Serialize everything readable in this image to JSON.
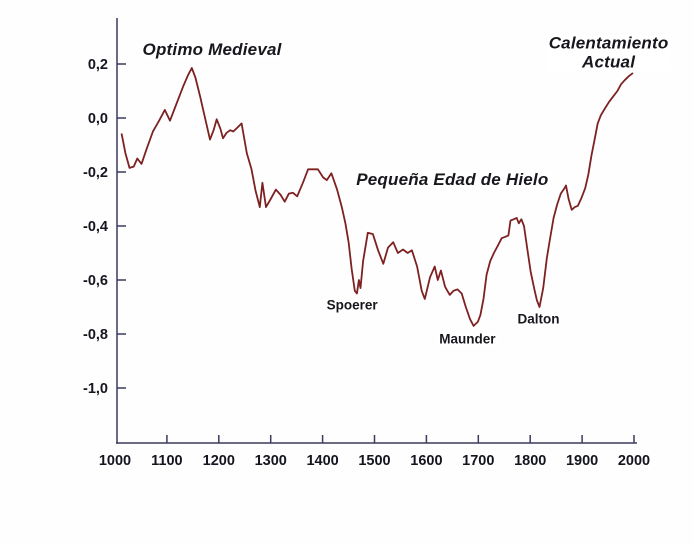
{
  "figure": {
    "background": "#fefefe",
    "line_color": "#7d2121",
    "axis_color": "#3a3a5e",
    "tick_label_color": "#15151f",
    "annotation_color": "#17171d"
  },
  "chart_data": {
    "type": "line",
    "title": "",
    "xlabel": "",
    "ylabel": "",
    "xlim": [
      1000,
      2000
    ],
    "ylim": [
      -1.1,
      0.3
    ],
    "grid": false,
    "legend": null,
    "x_ticks": [
      1000,
      1100,
      1200,
      1300,
      1400,
      1500,
      1600,
      1700,
      1800,
      1900,
      2000
    ],
    "x_tick_labels": [
      "1000",
      "1100",
      "1200",
      "1300",
      "1400",
      "1500",
      "1600",
      "1700",
      "1800",
      "1900",
      "2000"
    ],
    "y_ticks": [
      0.2,
      0.0,
      -0.2,
      -0.4,
      -0.6,
      -0.8,
      -1.0
    ],
    "y_tick_labels": [
      "0,2",
      "0,0",
      "-0,2",
      "-0,4",
      "-0,6",
      "-0,8",
      "-1,0"
    ],
    "series": [
      {
        "name": "anomalia-temperatura",
        "color": "#7d2121",
        "points": [
          [
            1013,
            -0.06
          ],
          [
            1020,
            -0.13
          ],
          [
            1028,
            -0.185
          ],
          [
            1036,
            -0.18
          ],
          [
            1043,
            -0.15
          ],
          [
            1051,
            -0.17
          ],
          [
            1060,
            -0.12
          ],
          [
            1073,
            -0.05
          ],
          [
            1085,
            -0.01
          ],
          [
            1096,
            0.03
          ],
          [
            1106,
            -0.01
          ],
          [
            1118,
            0.05
          ],
          [
            1132,
            0.12
          ],
          [
            1141,
            0.16
          ],
          [
            1148,
            0.185
          ],
          [
            1155,
            0.15
          ],
          [
            1164,
            0.08
          ],
          [
            1170,
            0.03
          ],
          [
            1177,
            -0.03
          ],
          [
            1183,
            -0.08
          ],
          [
            1190,
            -0.045
          ],
          [
            1196,
            -0.005
          ],
          [
            1203,
            -0.04
          ],
          [
            1208,
            -0.075
          ],
          [
            1215,
            -0.055
          ],
          [
            1222,
            -0.045
          ],
          [
            1228,
            -0.05
          ],
          [
            1236,
            -0.035
          ],
          [
            1244,
            -0.02
          ],
          [
            1254,
            -0.13
          ],
          [
            1263,
            -0.19
          ],
          [
            1271,
            -0.27
          ],
          [
            1279,
            -0.33
          ],
          [
            1284,
            -0.24
          ],
          [
            1291,
            -0.33
          ],
          [
            1300,
            -0.3
          ],
          [
            1310,
            -0.265
          ],
          [
            1319,
            -0.285
          ],
          [
            1327,
            -0.31
          ],
          [
            1335,
            -0.28
          ],
          [
            1343,
            -0.277
          ],
          [
            1351,
            -0.29
          ],
          [
            1362,
            -0.24
          ],
          [
            1372,
            -0.19
          ],
          [
            1382,
            -0.19
          ],
          [
            1391,
            -0.19
          ],
          [
            1401,
            -0.22
          ],
          [
            1408,
            -0.23
          ],
          [
            1417,
            -0.205
          ],
          [
            1428,
            -0.265
          ],
          [
            1437,
            -0.33
          ],
          [
            1444,
            -0.39
          ],
          [
            1450,
            -0.46
          ],
          [
            1456,
            -0.56
          ],
          [
            1462,
            -0.64
          ],
          [
            1466,
            -0.65
          ],
          [
            1470,
            -0.6
          ],
          [
            1473,
            -0.63
          ],
          [
            1478,
            -0.53
          ],
          [
            1487,
            -0.425
          ],
          [
            1497,
            -0.43
          ],
          [
            1507,
            -0.49
          ],
          [
            1517,
            -0.54
          ],
          [
            1526,
            -0.48
          ],
          [
            1536,
            -0.46
          ],
          [
            1545,
            -0.5
          ],
          [
            1555,
            -0.487
          ],
          [
            1564,
            -0.5
          ],
          [
            1572,
            -0.49
          ],
          [
            1582,
            -0.55
          ],
          [
            1591,
            -0.64
          ],
          [
            1597,
            -0.67
          ],
          [
            1607,
            -0.59
          ],
          [
            1616,
            -0.55
          ],
          [
            1622,
            -0.6
          ],
          [
            1628,
            -0.565
          ],
          [
            1636,
            -0.625
          ],
          [
            1645,
            -0.655
          ],
          [
            1652,
            -0.64
          ],
          [
            1660,
            -0.635
          ],
          [
            1668,
            -0.65
          ],
          [
            1676,
            -0.7
          ],
          [
            1684,
            -0.745
          ],
          [
            1691,
            -0.77
          ],
          [
            1699,
            -0.755
          ],
          [
            1704,
            -0.73
          ],
          [
            1710,
            -0.67
          ],
          [
            1716,
            -0.58
          ],
          [
            1723,
            -0.53
          ],
          [
            1730,
            -0.5
          ],
          [
            1737,
            -0.475
          ],
          [
            1745,
            -0.445
          ],
          [
            1752,
            -0.44
          ],
          [
            1758,
            -0.435
          ],
          [
            1762,
            -0.38
          ],
          [
            1768,
            -0.375
          ],
          [
            1774,
            -0.37
          ],
          [
            1778,
            -0.39
          ],
          [
            1783,
            -0.375
          ],
          [
            1788,
            -0.4
          ],
          [
            1794,
            -0.48
          ],
          [
            1801,
            -0.57
          ],
          [
            1808,
            -0.635
          ],
          [
            1813,
            -0.675
          ],
          [
            1818,
            -0.7
          ],
          [
            1825,
            -0.63
          ],
          [
            1832,
            -0.52
          ],
          [
            1838,
            -0.45
          ],
          [
            1845,
            -0.37
          ],
          [
            1852,
            -0.32
          ],
          [
            1859,
            -0.28
          ],
          [
            1866,
            -0.26
          ],
          [
            1869,
            -0.25
          ],
          [
            1874,
            -0.3
          ],
          [
            1880,
            -0.34
          ],
          [
            1886,
            -0.33
          ],
          [
            1892,
            -0.325
          ],
          [
            1899,
            -0.295
          ],
          [
            1906,
            -0.26
          ],
          [
            1912,
            -0.21
          ],
          [
            1918,
            -0.14
          ],
          [
            1924,
            -0.08
          ],
          [
            1930,
            -0.02
          ],
          [
            1936,
            0.01
          ],
          [
            1944,
            0.035
          ],
          [
            1952,
            0.06
          ],
          [
            1960,
            0.08
          ],
          [
            1968,
            0.1
          ],
          [
            1975,
            0.125
          ],
          [
            1982,
            0.14
          ],
          [
            1990,
            0.155
          ],
          [
            1997,
            0.165
          ]
        ]
      }
    ],
    "annotations": [
      {
        "id": "optimo-medieval",
        "text": "Optimo Medieval",
        "year": 1187,
        "value": 0.252,
        "size": "lg"
      },
      {
        "id": "calentamiento-actual",
        "text": "Calentamiento\nActual",
        "year": 1951,
        "value": 0.239,
        "size": "lg"
      },
      {
        "id": "pequena-edad-de-hielo",
        "text": "Pequeña Edad de Hielo",
        "year": 1650,
        "value": -0.23,
        "size": "lg"
      },
      {
        "id": "spoerer",
        "text": "Spoerer",
        "year": 1457,
        "value": -0.698,
        "size": "sm"
      },
      {
        "id": "maunder",
        "text": "Maunder",
        "year": 1679,
        "value": -0.822,
        "size": "sm"
      },
      {
        "id": "dalton",
        "text": "Dalton",
        "year": 1816,
        "value": -0.748,
        "size": "sm"
      }
    ]
  }
}
